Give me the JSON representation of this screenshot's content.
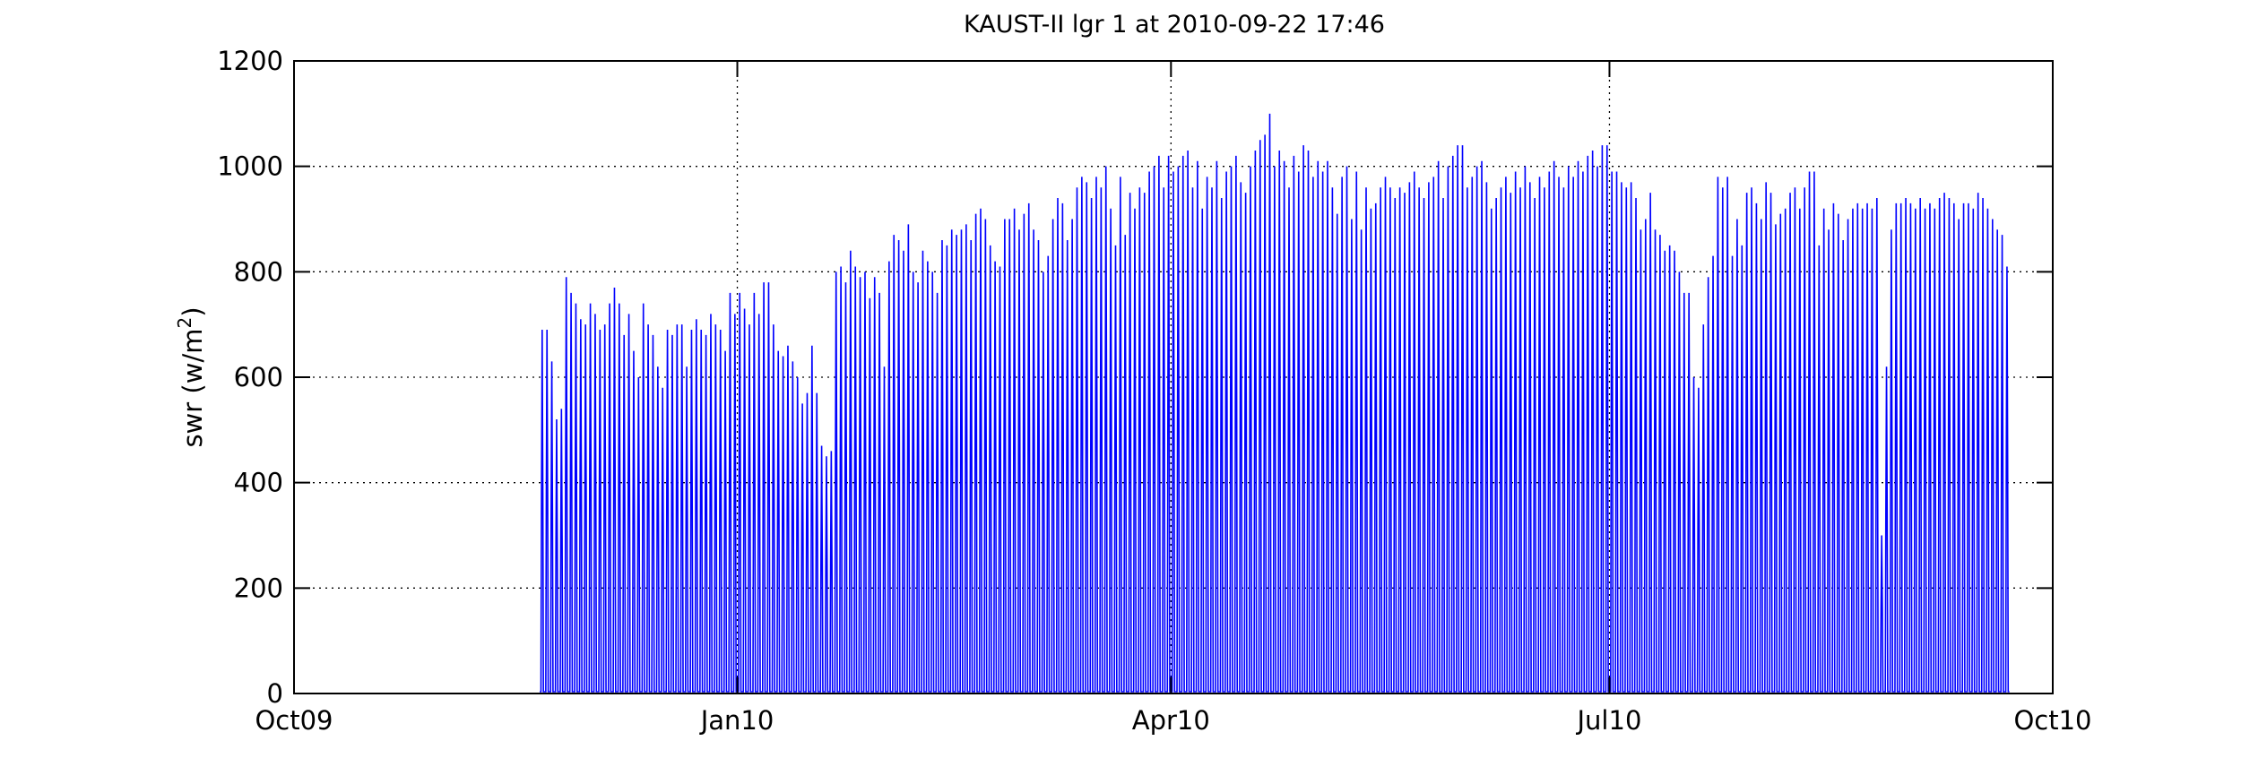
{
  "chart_data": {
    "type": "line",
    "title": "KAUST-II lgr 1 at 2010-09-22 17:46",
    "xlabel": "",
    "ylabel": "swr (w/m",
    "ylabel_sup": "2",
    "ylabel_close": ")",
    "xlim": [
      "2009-10-01",
      "2010-10-01"
    ],
    "ylim": [
      0,
      1200
    ],
    "grid": true,
    "grid_style": "dotted",
    "line_color": "#0000ff",
    "x_ticks": [
      {
        "date": "2009-10-01",
        "label": "Oct09"
      },
      {
        "date": "2010-01-01",
        "label": "Jan10"
      },
      {
        "date": "2010-04-01",
        "label": "Apr10"
      },
      {
        "date": "2010-07-01",
        "label": "Jul10"
      },
      {
        "date": "2010-10-01",
        "label": "Oct10"
      }
    ],
    "y_ticks": [
      0,
      200,
      400,
      600,
      800,
      1000,
      1200
    ],
    "series": [
      {
        "description_of_values": "daily maximum shortwave radiation; values fall to 0 each night",
        "first_date": "2009-11-21",
        "daily_peaks": [
          690,
          690,
          630,
          520,
          540,
          790,
          760,
          740,
          710,
          700,
          740,
          720,
          690,
          700,
          740,
          770,
          740,
          680,
          720,
          650,
          600,
          740,
          700,
          680,
          620,
          580,
          690,
          680,
          700,
          700,
          620,
          690,
          710,
          690,
          680,
          720,
          700,
          690,
          650,
          760,
          720,
          760,
          730,
          700,
          760,
          720,
          780,
          780,
          700,
          650,
          640,
          660,
          630,
          600,
          550,
          570,
          660,
          570,
          470,
          450,
          460,
          800,
          810,
          780,
          840,
          810,
          790,
          800,
          750,
          790,
          760,
          620,
          820,
          870,
          860,
          840,
          890,
          800,
          780,
          840,
          820,
          800,
          760,
          860,
          850,
          880,
          870,
          880,
          890,
          860,
          910,
          920,
          900,
          850,
          820,
          810,
          900,
          900,
          920,
          880,
          910,
          930,
          880,
          860,
          800,
          830,
          900,
          940,
          930,
          860,
          900,
          960,
          980,
          970,
          940,
          980,
          960,
          1000,
          920,
          850,
          980,
          870,
          950,
          920,
          960,
          950,
          990,
          1000,
          1020,
          960,
          1020,
          990,
          1000,
          1020,
          1030,
          960,
          1010,
          920,
          980,
          960,
          1010,
          940,
          990,
          1000,
          1020,
          970,
          950,
          1000,
          1030,
          1050,
          1060,
          1100,
          1000,
          1030,
          1010,
          960,
          1020,
          990,
          1040,
          1030,
          980,
          1010,
          990,
          1010,
          960,
          910,
          980,
          1000,
          900,
          990,
          880,
          960,
          920,
          930,
          960,
          980,
          960,
          940,
          960,
          950,
          970,
          990,
          960,
          940,
          970,
          980,
          1010,
          940,
          1000,
          1020,
          1040,
          1040,
          960,
          980,
          1000,
          1010,
          970,
          920,
          940,
          960,
          980,
          950,
          990,
          960,
          1000,
          970,
          940,
          980,
          960,
          990,
          1010,
          980,
          960,
          1000,
          980,
          1010,
          990,
          1020,
          1030,
          1000,
          1040,
          1040,
          990,
          990,
          970,
          960,
          970,
          940,
          880,
          900,
          950,
          880,
          870,
          840,
          850,
          840,
          800,
          760,
          760,
          600,
          580,
          700,
          790,
          830,
          980,
          960,
          980,
          830,
          900,
          850,
          950,
          960,
          930,
          900,
          970,
          950,
          890,
          910,
          920,
          950,
          960,
          920,
          960,
          990,
          990,
          850,
          920,
          880,
          930,
          910,
          860,
          900,
          920,
          930,
          920,
          930,
          920,
          940,
          300,
          620,
          880,
          930,
          930,
          940,
          930,
          920,
          940,
          920,
          930,
          920,
          940,
          950,
          940,
          930,
          900,
          930,
          930,
          920,
          950,
          940,
          920,
          900,
          880,
          870,
          810
        ]
      }
    ]
  }
}
